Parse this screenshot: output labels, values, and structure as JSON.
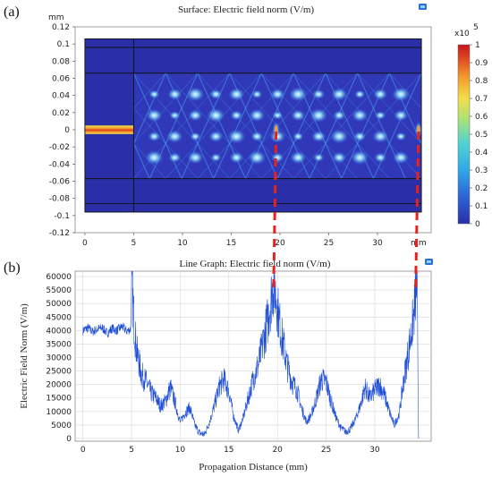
{
  "panel_a_label": "(a)",
  "panel_b_label": "(b)",
  "chart_data": [
    {
      "type": "heatmap",
      "title": "Surface: Electric field norm (V/m)",
      "x_unit": "mm",
      "y_unit": "mm",
      "x_ticks": [
        "0",
        "5",
        "10",
        "15",
        "20",
        "25",
        "30"
      ],
      "y_ticks": [
        "0.12",
        "0.1",
        "0.08",
        "0.06",
        "0.04",
        "0.02",
        "0",
        "-0.02",
        "-0.04",
        "-0.06",
        "-0.08",
        "-0.1",
        "-0.12"
      ],
      "xlim": [
        -1,
        35.5
      ],
      "ylim": [
        -0.12,
        0.12
      ],
      "colorbar": {
        "multiplier": "x10",
        "exponent": "5",
        "ticks": [
          "1",
          "0.9",
          "0.8",
          "0.7",
          "0.6",
          "0.5",
          "0.4",
          "0.3",
          "0.2",
          "0.1",
          "0"
        ],
        "colors": [
          "#2a2fa8",
          "#2c7be0",
          "#38c4e8",
          "#6de0b8",
          "#c9e86a",
          "#f7d843",
          "#f39a2e",
          "#e14b22",
          "#c4161c"
        ]
      },
      "regions": {
        "outer_x": [
          0,
          34.5
        ],
        "outer_y": [
          -0.096,
          0.106
        ],
        "waveguide_x": [
          5,
          34.5
        ],
        "waveguide_y": [
          -0.057,
          0.066
        ],
        "input_core_x": [
          0,
          5
        ],
        "input_core_y": [
          -0.005,
          0.005
        ],
        "cladding_lines_y": [
          0.096,
          -0.086
        ],
        "divider_x": 5,
        "self_image_x": [
          19.6,
          34.2
        ]
      }
    },
    {
      "type": "line",
      "title": "Line Graph: Electric field norm (V/m)",
      "xlabel": "Propagation Distance (mm)",
      "ylabel": "Electric Field Norm (V/m)",
      "x_ticks": [
        "0",
        "5",
        "10",
        "15",
        "20",
        "25",
        "30"
      ],
      "y_ticks": [
        "0",
        "5000",
        "10000",
        "15000",
        "20000",
        "25000",
        "30000",
        "35000",
        "40000",
        "45000",
        "50000",
        "55000",
        "60000"
      ],
      "xlim": [
        -0.8,
        35.8
      ],
      "ylim": [
        -1000,
        62000
      ],
      "grid": true,
      "series": [
        {
          "color": "#1f4fd6",
          "x": [
            0,
            0.5,
            1,
            1.5,
            2,
            2.5,
            3,
            3.5,
            4,
            4.5,
            4.9,
            5.05,
            5.2,
            5.5,
            6,
            6.5,
            7,
            7.5,
            8,
            8.5,
            9,
            9.5,
            10,
            10.5,
            11,
            11.5,
            12,
            12.5,
            13,
            13.5,
            14,
            14.5,
            15,
            15.5,
            16,
            16.5,
            17,
            17.5,
            18,
            18.5,
            19,
            19.3,
            19.6,
            19.9,
            20.2,
            20.6,
            21,
            21.5,
            22,
            22.5,
            23,
            23.5,
            24,
            24.5,
            25,
            25.5,
            26,
            26.5,
            27,
            27.5,
            28,
            28.5,
            29,
            29.5,
            30,
            30.5,
            31,
            31.5,
            32,
            32.5,
            33,
            33.5,
            34,
            34.2,
            34.35,
            34.5
          ],
          "y": [
            40000,
            41000,
            39500,
            40500,
            41000,
            39000,
            40800,
            40000,
            41500,
            39800,
            40500,
            58000,
            46000,
            33000,
            24000,
            21000,
            17000,
            15000,
            12000,
            14000,
            19000,
            13000,
            6000,
            9500,
            11500,
            5000,
            2000,
            1500,
            6000,
            12000,
            19000,
            22000,
            17500,
            8000,
            3000,
            8000,
            15000,
            22000,
            27000,
            35000,
            44000,
            51000,
            57000,
            52000,
            43000,
            35000,
            27000,
            21000,
            18000,
            11000,
            6000,
            9000,
            15000,
            22000,
            21000,
            14000,
            8000,
            4000,
            2500,
            3500,
            7000,
            12000,
            19000,
            15000,
            18000,
            20000,
            16000,
            10000,
            5000,
            9000,
            22000,
            33000,
            45000,
            53000,
            58000,
            0
          ]
        }
      ]
    }
  ]
}
